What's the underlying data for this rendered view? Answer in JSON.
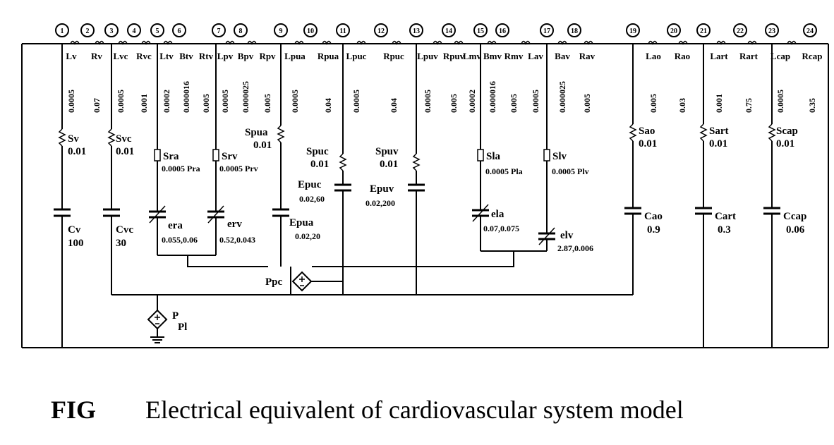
{
  "nodes": [
    "1",
    "2",
    "3",
    "4",
    "5",
    "6",
    "7",
    "8",
    "9",
    "10",
    "11",
    "12",
    "13",
    "14",
    "15",
    "16",
    "17",
    "18",
    "19",
    "20",
    "21",
    "22",
    "23",
    "24"
  ],
  "series_labels": [
    "Lv",
    "Rv",
    "Lvc",
    "Rvc",
    "Ltv",
    "Btv",
    "Rtv",
    "Lpv",
    "Bpv",
    "Rpv",
    "Lpua",
    "Rpua",
    "Lpuc",
    "Rpuc",
    "Lpuv",
    "Rpuv",
    "Lmv",
    "Bmv",
    "Rmv",
    "Lav",
    "Bav",
    "Rav",
    "Lao",
    "Rao",
    "Lart",
    "Rart",
    "Lcap",
    "Rcap"
  ],
  "series_values": [
    "0.0005",
    "0.07",
    "0.0005",
    "0.001",
    "0.0002",
    "0.000016",
    "0.005",
    "0.0005",
    "0.000025",
    "0.005",
    "0.0005",
    "0.04",
    "0.0005",
    "0.04",
    "0.0005",
    "0.005",
    "0.0002",
    "0.000016",
    "0.005",
    "0.0005",
    "0.000025",
    "0.005",
    "0.005",
    "0.03",
    "0.001",
    "0.75",
    "0.0005",
    "0.35"
  ],
  "resistors": [
    {
      "name": "Sv",
      "value": "0.01"
    },
    {
      "name": "Svc",
      "value": "0.01"
    },
    {
      "name": "Sra",
      "value": "0.0005 Pra"
    },
    {
      "name": "Srv",
      "value": "0.0005 Prv"
    },
    {
      "name": "Spua",
      "value": "0.01"
    },
    {
      "name": "Spuc",
      "value": "0.01"
    },
    {
      "name": "Spuv",
      "value": "0.01"
    },
    {
      "name": "Sla",
      "value": "0.0005 Pla"
    },
    {
      "name": "Slv",
      "value": "0.0005 Plv"
    },
    {
      "name": "Sao",
      "value": "0.01"
    },
    {
      "name": "Sart",
      "value": "0.01"
    },
    {
      "name": "Scap",
      "value": "0.01"
    }
  ],
  "capacitors": [
    {
      "name": "Cv",
      "value": "100"
    },
    {
      "name": "Cvc",
      "value": "30"
    },
    {
      "name": "era",
      "value": "0.055,0.06"
    },
    {
      "name": "erv",
      "value": "0.52,0.043"
    },
    {
      "name": "Epua",
      "value": "0.02,20"
    },
    {
      "name": "Epuc",
      "value": "0.02,60"
    },
    {
      "name": "Epuv",
      "value": "0.02,200"
    },
    {
      "name": "ela",
      "value": "0.07,0.075"
    },
    {
      "name": "elv",
      "value": "2.87,0.006"
    },
    {
      "name": "Cao",
      "value": "0.9"
    },
    {
      "name": "Cart",
      "value": "0.3"
    },
    {
      "name": "Ccap",
      "value": "0.06"
    }
  ],
  "sources": {
    "ppc": "Ppc",
    "ppl_main": "P",
    "ppl_sub": "Pl"
  },
  "caption": {
    "fig": "FIG",
    "text": "Electrical equivalent of cardiovascular system model"
  }
}
